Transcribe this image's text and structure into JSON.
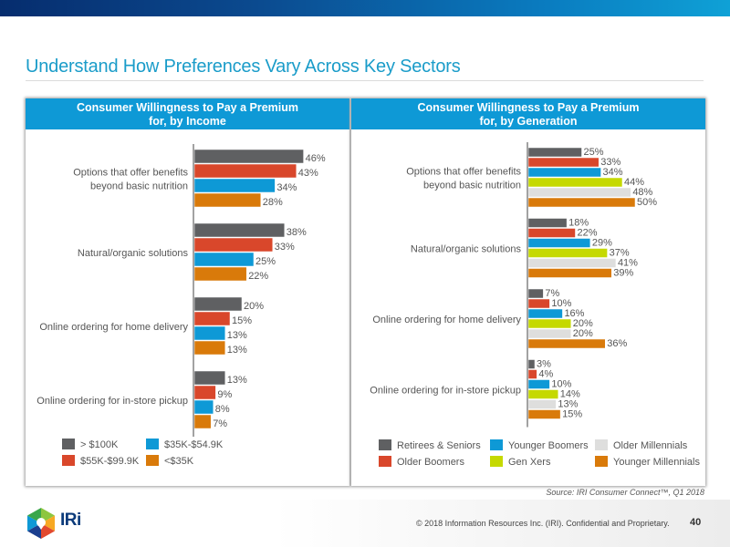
{
  "page": {
    "title": "Understand How Preferences Vary Across Key Sectors",
    "source": "Source: IRI Consumer Connect™, Q1 2018",
    "copyright": "© 2018 Information Resources Inc. (IRI). Confidential and Proprietary.",
    "page_number": "40",
    "logo_text": "IRi",
    "logo_icon": "iri-hexagon-logo-icon"
  },
  "colors": {
    "header_blue": "#0e99d6",
    "title_blue": "#1a9cc9"
  },
  "chart_data": [
    {
      "type": "bar",
      "orientation": "horizontal",
      "title": "Consumer Willingness to Pay a Premium for, by Income",
      "title_lines": [
        "Consumer Willingness to Pay a Premium",
        "for, by Income"
      ],
      "categories": [
        "Options that offer benefits beyond basic nutrition",
        "Natural/organic solutions",
        "Online ordering for home delivery",
        "Online ordering for in-store pickup"
      ],
      "category_lines": [
        [
          "Options that offer benefits",
          "beyond basic nutrition"
        ],
        [
          "Natural/organic solutions"
        ],
        [
          "Online ordering for home delivery"
        ],
        [
          "Online ordering for in-store pickup"
        ]
      ],
      "series": [
        {
          "name": "> $100K",
          "color": "#5f6062",
          "values": [
            46,
            38,
            20,
            13
          ]
        },
        {
          "name": "$55K-$99.9K",
          "color": "#d9472b",
          "values": [
            43,
            33,
            15,
            9
          ]
        },
        {
          "name": "$35K-$54.9K",
          "color": "#0e99d6",
          "values": [
            34,
            25,
            13,
            8
          ]
        },
        {
          "name": "<$35K",
          "color": "#d97a0a",
          "values": [
            28,
            22,
            13,
            7
          ]
        }
      ],
      "value_suffix": "%",
      "xlim": [
        0,
        50
      ],
      "grid": false,
      "legend_position": "bottom"
    },
    {
      "type": "bar",
      "orientation": "horizontal",
      "title": "Consumer Willingness to Pay a Premium for, by Generation",
      "title_lines": [
        "Consumer Willingness to Pay a Premium",
        "for, by Generation"
      ],
      "categories": [
        "Options that offer benefits beyond basic nutrition",
        "Natural/organic solutions",
        "Online ordering for home delivery",
        "Online ordering for in-store pickup"
      ],
      "category_lines": [
        [
          "Options that offer benefits",
          "beyond basic nutrition"
        ],
        [
          "Natural/organic solutions"
        ],
        [
          "Online ordering for home delivery"
        ],
        [
          "Online ordering for in-store pickup"
        ]
      ],
      "series": [
        {
          "name": "Retirees & Seniors",
          "color": "#5f6062",
          "values": [
            25,
            18,
            7,
            3
          ]
        },
        {
          "name": "Older Boomers",
          "color": "#d9472b",
          "values": [
            33,
            22,
            10,
            4
          ]
        },
        {
          "name": "Younger Boomers",
          "color": "#0e99d6",
          "values": [
            34,
            29,
            16,
            10
          ]
        },
        {
          "name": "Gen Xers",
          "color": "#c5d900",
          "values": [
            44,
            37,
            20,
            14
          ]
        },
        {
          "name": "Older Millennials",
          "color": "#dededd",
          "values": [
            48,
            41,
            20,
            13
          ]
        },
        {
          "name": "Younger Millennials",
          "color": "#d97a0a",
          "values": [
            50,
            39,
            36,
            15
          ]
        }
      ],
      "value_suffix": "%",
      "xlim": [
        0,
        55
      ],
      "grid": false,
      "legend_position": "bottom"
    }
  ]
}
